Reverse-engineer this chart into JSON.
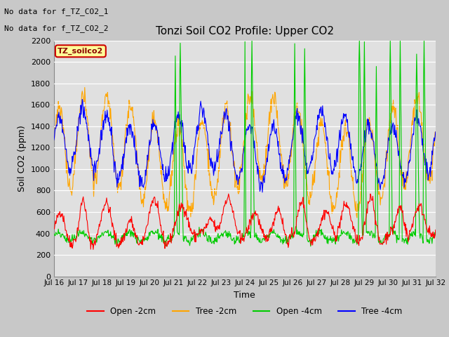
{
  "title": "Tonzi Soil CO2 Profile: Upper CO2",
  "xlabel": "Time",
  "ylabel": "Soil CO2 (ppm)",
  "ylim": [
    0,
    2200
  ],
  "yticks": [
    0,
    200,
    400,
    600,
    800,
    1000,
    1200,
    1400,
    1600,
    1800,
    2000,
    2200
  ],
  "annotation_lines": [
    "No data for f_TZ_CO2_1",
    "No data for f_TZ_CO2_2"
  ],
  "legend_label": "TZ_soilco2",
  "legend_entries": [
    "Open -2cm",
    "Tree -2cm",
    "Open -4cm",
    "Tree -4cm"
  ],
  "legend_colors": [
    "#ff0000",
    "#ffa500",
    "#00cc00",
    "#0000ff"
  ],
  "line_colors": {
    "open2cm": "#ff0000",
    "tree2cm": "#ffa500",
    "open4cm": "#00cc00",
    "tree4cm": "#0000ff"
  },
  "bg_color": "#e0e0e0",
  "fig_bg_color": "#c8c8c8",
  "n_days": 16,
  "start_day": 16,
  "points_per_day": 48,
  "seed": 42
}
